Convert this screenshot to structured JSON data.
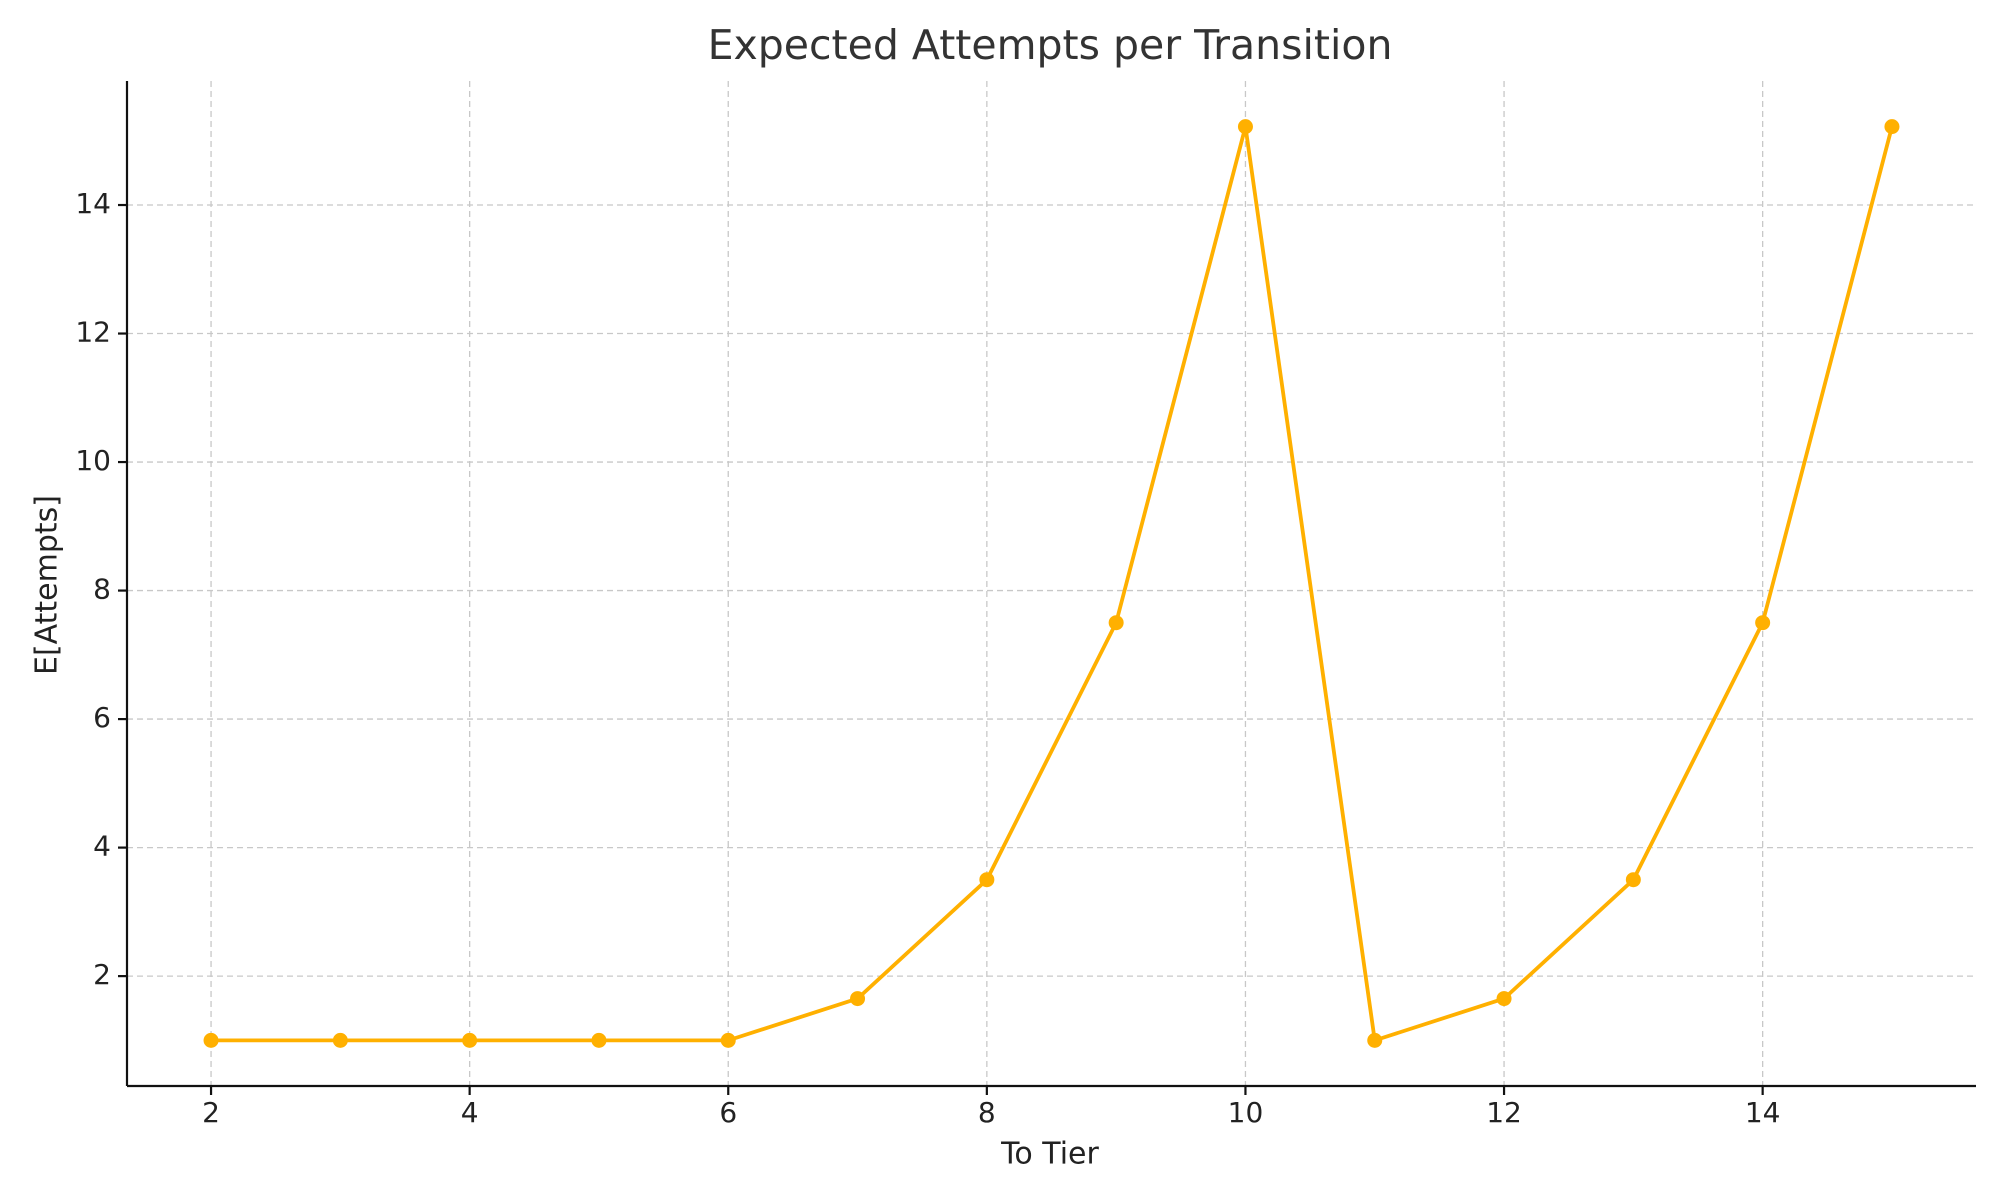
{
  "chart_data": {
    "type": "line",
    "title": "Expected Attempts per Transition",
    "x_label": "To Tier",
    "y_label": "E[Attempts]",
    "x": [
      2,
      3,
      4,
      5,
      6,
      7,
      8,
      9,
      10,
      11,
      12,
      13,
      14,
      15
    ],
    "series": [
      {
        "color": "#FFB000",
        "values": [
          1,
          1,
          1,
          1,
          1,
          1.65,
          3.5,
          7.5,
          15.22,
          1,
          1.65,
          3.5,
          7.5,
          15.22
        ]
      }
    ],
    "xlim": [
      1.35,
      15.65
    ],
    "ylim": [
      0.29,
      15.93
    ],
    "xticks": [
      2,
      4,
      6,
      8,
      10,
      12,
      14
    ],
    "yticks": [
      2,
      4,
      6,
      8,
      10,
      12,
      14
    ],
    "grid": true
  }
}
